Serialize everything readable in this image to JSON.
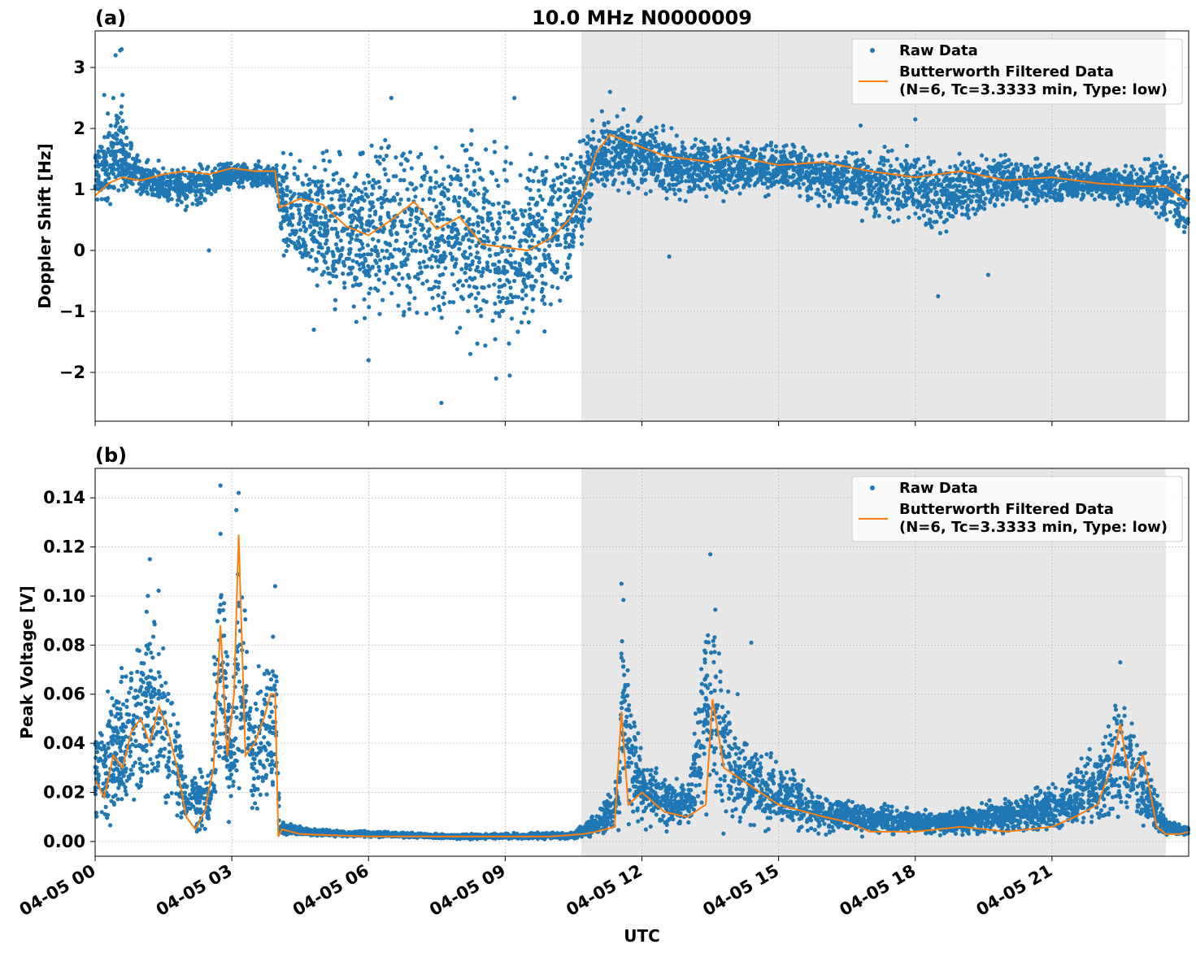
{
  "figure": {
    "title": "10.0 MHz N0000009",
    "xlabel": "UTC",
    "x_tick_labels": [
      "04-05 00",
      "04-05 03",
      "04-05 06",
      "04-05 09",
      "04-05 12",
      "04-05 15",
      "04-05 18",
      "04-05 21"
    ],
    "shaded_interval_hours": [
      10.67,
      23.5
    ]
  },
  "colors": {
    "raw": "#1f77b4",
    "filtered": "#ff7f0e",
    "shade": "#e7e7e7",
    "grid": "#b0b0b0"
  },
  "legend": {
    "raw_label": "Raw Data",
    "filtered_label_line1": "Butterworth Filtered Data",
    "filtered_label_line2": "(N=6, Tc=3.3333 min, Type: low)"
  },
  "chart_data": [
    {
      "panel": "(a)",
      "type": "scatter",
      "ylabel": "Doppler Shift [Hz]",
      "x_unit": "UTC hours on 04-05",
      "xlim": [
        0,
        24
      ],
      "ylim": [
        -2.8,
        3.6
      ],
      "y_tick_labels": [
        "3",
        "2",
        "1",
        "0",
        "−1",
        "−2"
      ],
      "grid": true,
      "legend_position": "top-right",
      "series": [
        {
          "name": "Raw Data",
          "style": "points",
          "envelope": [
            {
              "x": 0.0,
              "low": 0.6,
              "high": 1.8
            },
            {
              "x": 0.5,
              "low": 0.8,
              "high": 2.6
            },
            {
              "x": 1.0,
              "low": 0.8,
              "high": 1.5
            },
            {
              "x": 2.0,
              "low": 0.6,
              "high": 1.4
            },
            {
              "x": 3.0,
              "low": 1.0,
              "high": 1.5
            },
            {
              "x": 3.95,
              "low": 1.0,
              "high": 1.4
            },
            {
              "x": 4.1,
              "low": -0.2,
              "high": 1.6
            },
            {
              "x": 5.0,
              "low": -1.0,
              "high": 1.8
            },
            {
              "x": 6.0,
              "low": -1.4,
              "high": 1.9
            },
            {
              "x": 7.0,
              "low": -1.3,
              "high": 2.0
            },
            {
              "x": 8.0,
              "low": -1.5,
              "high": 2.0
            },
            {
              "x": 9.0,
              "low": -1.8,
              "high": 1.9
            },
            {
              "x": 10.0,
              "low": -1.2,
              "high": 1.8
            },
            {
              "x": 10.6,
              "low": -0.4,
              "high": 1.9
            },
            {
              "x": 11.0,
              "low": 0.9,
              "high": 2.3
            },
            {
              "x": 12.0,
              "low": 0.9,
              "high": 2.2
            },
            {
              "x": 13.0,
              "low": 0.8,
              "high": 1.9
            },
            {
              "x": 15.0,
              "low": 0.9,
              "high": 1.8
            },
            {
              "x": 17.0,
              "low": 0.5,
              "high": 1.7
            },
            {
              "x": 18.5,
              "low": 0.2,
              "high": 1.7
            },
            {
              "x": 20.0,
              "low": 0.7,
              "high": 1.6
            },
            {
              "x": 22.0,
              "low": 0.8,
              "high": 1.4
            },
            {
              "x": 23.5,
              "low": 0.4,
              "high": 1.6
            },
            {
              "x": 24.0,
              "low": 0.0,
              "high": 1.4
            }
          ],
          "outliers": [
            {
              "x": 0.45,
              "y": 3.2
            },
            {
              "x": 0.55,
              "y": 3.28
            },
            {
              "x": 0.58,
              "y": 3.3
            },
            {
              "x": 0.2,
              "y": 2.55
            },
            {
              "x": 0.4,
              "y": 2.5
            },
            {
              "x": 0.6,
              "y": 2.55
            },
            {
              "x": 6.5,
              "y": 2.5
            },
            {
              "x": 9.2,
              "y": 2.5
            },
            {
              "x": 11.3,
              "y": 2.6
            },
            {
              "x": 7.6,
              "y": -2.5
            },
            {
              "x": 8.8,
              "y": -2.1
            },
            {
              "x": 9.1,
              "y": -2.05
            },
            {
              "x": 18.0,
              "y": 2.15
            },
            {
              "x": 16.8,
              "y": 2.05
            },
            {
              "x": 12.6,
              "y": -0.1
            },
            {
              "x": 19.6,
              "y": -0.4
            },
            {
              "x": 2.5,
              "y": 0.0
            },
            {
              "x": 6.0,
              "y": -1.8
            },
            {
              "x": 4.8,
              "y": -1.3
            },
            {
              "x": 18.5,
              "y": -0.75
            }
          ]
        },
        {
          "name": "Butterworth Filtered Data\n(N=6, Tc=3.3333 min, Type: low)",
          "style": "line",
          "x": [
            0,
            0.3,
            0.6,
            1.0,
            1.5,
            2.0,
            2.5,
            3.0,
            3.5,
            3.95,
            4.05,
            4.5,
            5.0,
            5.5,
            6.0,
            6.5,
            7.0,
            7.5,
            8.0,
            8.5,
            9.0,
            9.5,
            10.0,
            10.4,
            10.7,
            11.0,
            11.3,
            11.8,
            12.5,
            13.0,
            13.5,
            14.0,
            15.0,
            16.0,
            17.0,
            18.0,
            19.0,
            20.0,
            21.0,
            22.0,
            23.0,
            23.5,
            24.0
          ],
          "y": [
            0.9,
            1.1,
            1.2,
            1.15,
            1.25,
            1.3,
            1.25,
            1.35,
            1.3,
            1.3,
            0.7,
            0.85,
            0.75,
            0.4,
            0.25,
            0.5,
            0.8,
            0.35,
            0.55,
            0.1,
            0.05,
            0.0,
            0.2,
            0.5,
            0.9,
            1.6,
            1.9,
            1.75,
            1.55,
            1.5,
            1.45,
            1.55,
            1.4,
            1.45,
            1.3,
            1.2,
            1.3,
            1.15,
            1.2,
            1.1,
            1.05,
            1.05,
            0.8
          ]
        }
      ]
    },
    {
      "panel": "(b)",
      "type": "scatter",
      "ylabel": "Peak Voltage [V]",
      "x_unit": "UTC hours on 04-05",
      "xlim": [
        0,
        24
      ],
      "ylim": [
        -0.006,
        0.152
      ],
      "y_tick_labels": [
        "0.14",
        "0.12",
        "0.10",
        "0.08",
        "0.06",
        "0.04",
        "0.02",
        "0.00"
      ],
      "grid": true,
      "legend_position": "top-right",
      "series": [
        {
          "name": "Raw Data",
          "style": "points",
          "envelope": [
            {
              "x": 0.0,
              "low": 0.005,
              "high": 0.05
            },
            {
              "x": 0.5,
              "low": 0.006,
              "high": 0.07
            },
            {
              "x": 1.0,
              "low": 0.008,
              "high": 0.09
            },
            {
              "x": 1.3,
              "low": 0.006,
              "high": 0.11
            },
            {
              "x": 1.7,
              "low": 0.004,
              "high": 0.07
            },
            {
              "x": 2.0,
              "low": 0.002,
              "high": 0.03
            },
            {
              "x": 2.5,
              "low": 0.003,
              "high": 0.03
            },
            {
              "x": 2.75,
              "low": 0.005,
              "high": 0.14
            },
            {
              "x": 3.0,
              "low": 0.005,
              "high": 0.05
            },
            {
              "x": 3.15,
              "low": 0.01,
              "high": 0.14
            },
            {
              "x": 3.5,
              "low": 0.005,
              "high": 0.06
            },
            {
              "x": 3.95,
              "low": 0.01,
              "high": 0.1
            },
            {
              "x": 4.05,
              "low": 0.002,
              "high": 0.008
            },
            {
              "x": 5.0,
              "low": 0.002,
              "high": 0.005
            },
            {
              "x": 8.0,
              "low": 0.001,
              "high": 0.003
            },
            {
              "x": 10.5,
              "low": 0.001,
              "high": 0.004
            },
            {
              "x": 11.0,
              "low": 0.002,
              "high": 0.012
            },
            {
              "x": 11.5,
              "low": 0.003,
              "high": 0.03
            },
            {
              "x": 11.55,
              "low": 0.005,
              "high": 0.1
            },
            {
              "x": 12.0,
              "low": 0.004,
              "high": 0.035
            },
            {
              "x": 13.0,
              "low": 0.004,
              "high": 0.025
            },
            {
              "x": 13.5,
              "low": 0.006,
              "high": 0.11
            },
            {
              "x": 14.0,
              "low": 0.005,
              "high": 0.05
            },
            {
              "x": 15.0,
              "low": 0.004,
              "high": 0.035
            },
            {
              "x": 16.0,
              "low": 0.003,
              "high": 0.02
            },
            {
              "x": 18.0,
              "low": 0.002,
              "high": 0.013
            },
            {
              "x": 20.0,
              "low": 0.002,
              "high": 0.018
            },
            {
              "x": 21.0,
              "low": 0.003,
              "high": 0.025
            },
            {
              "x": 22.0,
              "low": 0.004,
              "high": 0.04
            },
            {
              "x": 22.5,
              "low": 0.005,
              "high": 0.07
            },
            {
              "x": 23.0,
              "low": 0.004,
              "high": 0.04
            },
            {
              "x": 23.5,
              "low": 0.002,
              "high": 0.01
            },
            {
              "x": 24.0,
              "low": 0.002,
              "high": 0.006
            }
          ],
          "outliers": [
            {
              "x": 2.75,
              "y": 0.145
            },
            {
              "x": 3.15,
              "y": 0.142
            },
            {
              "x": 3.1,
              "y": 0.135
            },
            {
              "x": 1.2,
              "y": 0.115
            },
            {
              "x": 3.95,
              "y": 0.104
            },
            {
              "x": 11.55,
              "y": 0.105
            },
            {
              "x": 13.5,
              "y": 0.117
            },
            {
              "x": 14.4,
              "y": 0.081
            },
            {
              "x": 22.5,
              "y": 0.073
            },
            {
              "x": 14.1,
              "y": 0.06
            }
          ]
        },
        {
          "name": "Butterworth Filtered Data\n(N=6, Tc=3.3333 min, Type: low)",
          "style": "line",
          "x": [
            0,
            0.2,
            0.4,
            0.6,
            0.8,
            1.0,
            1.2,
            1.4,
            1.6,
            1.8,
            2.0,
            2.2,
            2.4,
            2.6,
            2.75,
            2.9,
            3.05,
            3.15,
            3.3,
            3.5,
            3.7,
            3.85,
            3.95,
            4.02,
            4.1,
            4.5,
            6.0,
            8.0,
            10.0,
            10.7,
            11.0,
            11.4,
            11.55,
            11.7,
            12.0,
            12.5,
            13.0,
            13.4,
            13.55,
            13.8,
            14.2,
            15.0,
            16.0,
            16.5,
            17.0,
            18.0,
            19.0,
            20.0,
            21.0,
            21.5,
            22.0,
            22.3,
            22.5,
            22.7,
            23.0,
            23.3,
            23.5,
            23.8,
            24.0
          ],
          "y": [
            0.025,
            0.018,
            0.035,
            0.03,
            0.045,
            0.05,
            0.04,
            0.055,
            0.045,
            0.03,
            0.01,
            0.005,
            0.012,
            0.03,
            0.088,
            0.035,
            0.06,
            0.125,
            0.035,
            0.04,
            0.05,
            0.06,
            0.06,
            0.002,
            0.005,
            0.003,
            0.002,
            0.002,
            0.002,
            0.003,
            0.004,
            0.006,
            0.053,
            0.015,
            0.02,
            0.012,
            0.01,
            0.015,
            0.058,
            0.03,
            0.025,
            0.015,
            0.01,
            0.008,
            0.004,
            0.004,
            0.006,
            0.004,
            0.006,
            0.01,
            0.015,
            0.03,
            0.048,
            0.025,
            0.035,
            0.006,
            0.003,
            0.003,
            0.004
          ]
        }
      ]
    }
  ]
}
